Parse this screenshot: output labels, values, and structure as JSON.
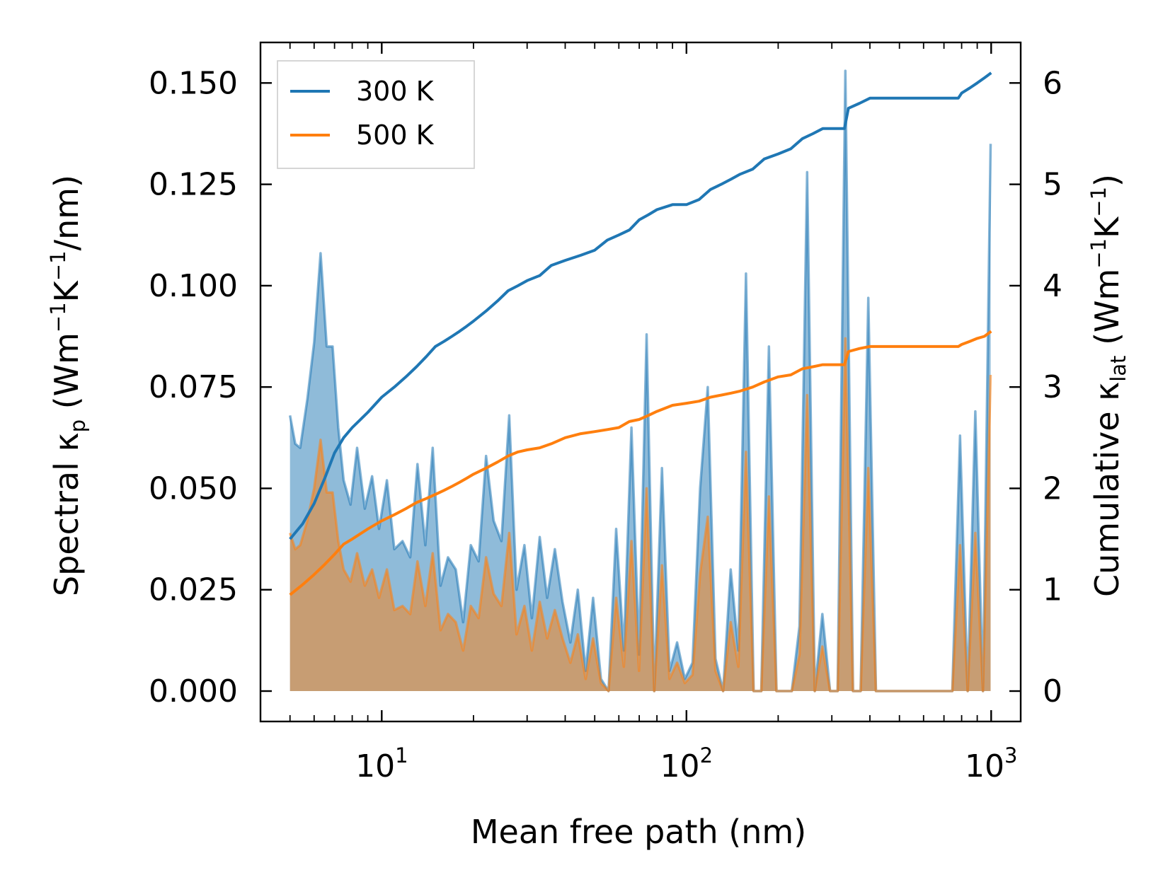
{
  "chart_data": {
    "type": "line",
    "xscale": "log",
    "xlabel": "Mean free path (nm)",
    "ylabel_left": {
      "pre": "Spectral κ",
      "sub": "p",
      "mid": " (Wm",
      "sup1": "−1",
      "mid2": "K",
      "sup2": "−1",
      "post": "/nm)"
    },
    "ylabel_right": {
      "pre": "Cumulative κ",
      "sub": "lat",
      "mid": " (Wm",
      "sup1": "−1",
      "mid2": "K",
      "sup2": "−1",
      "post": ")"
    },
    "xlim": [
      4.0,
      1250
    ],
    "ylim_left": [
      -0.0075,
      0.16
    ],
    "ylim_right": [
      -0.3,
      6.4
    ],
    "x_ticks": [
      {
        "value": 10,
        "base": "10",
        "exp": "1"
      },
      {
        "value": 100,
        "base": "10",
        "exp": "2"
      },
      {
        "value": 1000,
        "base": "10",
        "exp": "3"
      }
    ],
    "y_ticks_left": [
      {
        "value": 0.0,
        "label": "0.000"
      },
      {
        "value": 0.025,
        "label": "0.025"
      },
      {
        "value": 0.05,
        "label": "0.050"
      },
      {
        "value": 0.075,
        "label": "0.075"
      },
      {
        "value": 0.1,
        "label": "0.100"
      },
      {
        "value": 0.125,
        "label": "0.125"
      },
      {
        "value": 0.15,
        "label": "0.150"
      }
    ],
    "y_ticks_right": [
      {
        "value": 0,
        "label": "0"
      },
      {
        "value": 1,
        "label": "1"
      },
      {
        "value": 2,
        "label": "2"
      },
      {
        "value": 3,
        "label": "3"
      },
      {
        "value": 4,
        "label": "4"
      },
      {
        "value": 5,
        "label": "5"
      },
      {
        "value": 6,
        "label": "6"
      }
    ],
    "legend": {
      "position": "top-left",
      "entries": [
        {
          "name": "300 K",
          "color": "#1f77b4"
        },
        {
          "name": "500 K",
          "color": "#ff7f0e"
        }
      ]
    },
    "spectral_series": [
      {
        "name": "300 K spectral",
        "axis": "left",
        "color": "#1f77b4",
        "fill": "#1f77b4",
        "fill_alpha": 0.5,
        "x": [
          5.0,
          5.2,
          5.4,
          5.7,
          6.0,
          6.3,
          6.6,
          6.9,
          7.2,
          7.5,
          7.9,
          8.3,
          8.8,
          9.3,
          9.8,
          10.4,
          11.0,
          11.7,
          12.4,
          13.1,
          13.9,
          14.7,
          15.6,
          16.5,
          17.5,
          18.5,
          19.6,
          20.8,
          22.0,
          23.3,
          24.7,
          26.2,
          27.7,
          29.4,
          31.1,
          33.0,
          34.9,
          37.0,
          39.2,
          41.6,
          44.0,
          46.7,
          49.4,
          52.4,
          55.5,
          58.8,
          62.3,
          66.0,
          69.9,
          74.0,
          78.4,
          83.1,
          88.0,
          93.2,
          98.8,
          104.7,
          110.9,
          117.5,
          124.5,
          131.9,
          139.7,
          148.0,
          156.8,
          166.1,
          176.0,
          186.5,
          197.5,
          209.3,
          221.7,
          234.9,
          248.9,
          263.7,
          279.3,
          296.0,
          313.5,
          332.2,
          352.0,
          372.9,
          395.1,
          418.6,
          443.5,
          469.8,
          497.8,
          527.4,
          558.7,
          592.0,
          627.2,
          664.5,
          704.0,
          745.8,
          790.2,
          837.2,
          887.0,
          939.7,
          995.6
        ],
        "y": [
          0.068,
          0.061,
          0.06,
          0.072,
          0.086,
          0.108,
          0.085,
          0.085,
          0.065,
          0.052,
          0.046,
          0.06,
          0.045,
          0.053,
          0.04,
          0.052,
          0.035,
          0.037,
          0.033,
          0.056,
          0.036,
          0.06,
          0.026,
          0.033,
          0.03,
          0.017,
          0.036,
          0.032,
          0.058,
          0.042,
          0.037,
          0.068,
          0.025,
          0.036,
          0.018,
          0.038,
          0.023,
          0.035,
          0.022,
          0.012,
          0.025,
          0.005,
          0.023,
          0.003,
          0.0,
          0.04,
          0.01,
          0.065,
          0.009,
          0.088,
          0.0,
          0.055,
          0.005,
          0.012,
          0.003,
          0.007,
          0.05,
          0.075,
          0.008,
          0.0,
          0.03,
          0.01,
          0.103,
          0.0,
          0.0,
          0.085,
          0.0,
          0.0,
          0.0,
          0.016,
          0.128,
          0.0,
          0.019,
          0.0,
          0.0,
          0.153,
          0.0,
          0.0,
          0.097,
          0.0,
          0.0,
          0.0,
          0.0,
          0.0,
          0.0,
          0.0,
          0.0,
          0.0,
          0.0,
          0.0,
          0.063,
          0.0,
          0.069,
          0.0,
          0.135
        ]
      },
      {
        "name": "500 K spectral",
        "axis": "left",
        "color": "#ff7f0e",
        "fill": "#ff7f0e",
        "fill_alpha": 0.5,
        "x": [
          5.0,
          5.2,
          5.4,
          5.7,
          6.0,
          6.3,
          6.6,
          6.9,
          7.2,
          7.5,
          7.9,
          8.3,
          8.8,
          9.3,
          9.8,
          10.4,
          11.0,
          11.7,
          12.4,
          13.1,
          13.9,
          14.7,
          15.6,
          16.5,
          17.5,
          18.5,
          19.6,
          20.8,
          22.0,
          23.3,
          24.7,
          26.2,
          27.7,
          29.4,
          31.1,
          33.0,
          34.9,
          37.0,
          39.2,
          41.6,
          44.0,
          46.7,
          49.4,
          52.4,
          55.5,
          58.8,
          62.3,
          66.0,
          69.9,
          74.0,
          78.4,
          83.1,
          88.0,
          93.2,
          98.8,
          104.7,
          110.9,
          117.5,
          124.5,
          131.9,
          139.7,
          148.0,
          156.8,
          166.1,
          176.0,
          186.5,
          197.5,
          209.3,
          221.7,
          234.9,
          248.9,
          263.7,
          279.3,
          296.0,
          313.5,
          332.2,
          352.0,
          372.9,
          395.1,
          418.6,
          443.5,
          469.8,
          497.8,
          527.4,
          558.7,
          592.0,
          627.2,
          664.5,
          704.0,
          745.8,
          790.2,
          837.2,
          887.0,
          939.7,
          995.6
        ],
        "y": [
          0.039,
          0.035,
          0.036,
          0.042,
          0.05,
          0.062,
          0.049,
          0.049,
          0.037,
          0.03,
          0.027,
          0.034,
          0.026,
          0.03,
          0.023,
          0.03,
          0.02,
          0.021,
          0.019,
          0.032,
          0.021,
          0.034,
          0.015,
          0.019,
          0.017,
          0.01,
          0.021,
          0.018,
          0.033,
          0.024,
          0.021,
          0.039,
          0.014,
          0.021,
          0.01,
          0.022,
          0.013,
          0.02,
          0.013,
          0.007,
          0.014,
          0.003,
          0.013,
          0.002,
          0.0,
          0.023,
          0.006,
          0.037,
          0.005,
          0.05,
          0.0,
          0.031,
          0.003,
          0.007,
          0.002,
          0.004,
          0.029,
          0.043,
          0.005,
          0.0,
          0.017,
          0.006,
          0.059,
          0.0,
          0.0,
          0.048,
          0.0,
          0.0,
          0.0,
          0.009,
          0.073,
          0.0,
          0.011,
          0.0,
          0.0,
          0.087,
          0.0,
          0.0,
          0.055,
          0.0,
          0.0,
          0.0,
          0.0,
          0.0,
          0.0,
          0.0,
          0.0,
          0.0,
          0.0,
          0.0,
          0.036,
          0.0,
          0.039,
          0.0,
          0.078
        ]
      }
    ],
    "cumulative_series": [
      {
        "name": "300 K",
        "axis": "right",
        "color": "#1f77b4",
        "x": [
          5.0,
          5.5,
          6.0,
          6.5,
          7.0,
          7.5,
          8.0,
          9.0,
          10.0,
          11.0,
          12.0,
          13.0,
          14.0,
          15.0,
          16.0,
          17.0,
          18.0,
          19.0,
          20.0,
          22.0,
          24.0,
          26.0,
          28.0,
          30.0,
          33.0,
          36.0,
          40.0,
          45.0,
          50.0,
          55.0,
          60.0,
          65.0,
          70.0,
          75.0,
          80.0,
          90.0,
          100.0,
          110.0,
          120.0,
          130.0,
          140.0,
          150.0,
          165.0,
          180.0,
          200.0,
          220.0,
          240.0,
          260.0,
          280.0,
          300.0,
          330.0,
          340.0,
          370.0,
          400.0,
          700.0,
          780.0,
          800.0,
          850.0,
          900.0,
          950.0,
          1000.0
        ],
        "y": [
          1.5,
          1.65,
          1.85,
          2.1,
          2.35,
          2.5,
          2.6,
          2.75,
          2.9,
          3.0,
          3.1,
          3.2,
          3.3,
          3.4,
          3.45,
          3.5,
          3.55,
          3.6,
          3.65,
          3.75,
          3.85,
          3.95,
          4.0,
          4.05,
          4.1,
          4.2,
          4.25,
          4.3,
          4.35,
          4.45,
          4.5,
          4.55,
          4.65,
          4.7,
          4.75,
          4.8,
          4.8,
          4.85,
          4.95,
          5.0,
          5.05,
          5.1,
          5.15,
          5.25,
          5.3,
          5.35,
          5.45,
          5.5,
          5.55,
          5.55,
          5.55,
          5.75,
          5.8,
          5.85,
          5.85,
          5.85,
          5.9,
          5.95,
          6.0,
          6.05,
          6.1
        ]
      },
      {
        "name": "500 K",
        "axis": "right",
        "color": "#ff7f0e",
        "x": [
          5.0,
          5.5,
          6.0,
          6.5,
          7.0,
          7.5,
          8.0,
          9.0,
          10.0,
          11.0,
          12.0,
          13.0,
          14.0,
          15.0,
          16.0,
          17.0,
          18.0,
          19.0,
          20.0,
          22.0,
          24.0,
          26.0,
          28.0,
          30.0,
          33.0,
          36.0,
          40.0,
          45.0,
          50.0,
          55.0,
          60.0,
          65.0,
          70.0,
          75.0,
          80.0,
          90.0,
          100.0,
          110.0,
          120.0,
          130.0,
          140.0,
          150.0,
          165.0,
          180.0,
          200.0,
          220.0,
          240.0,
          260.0,
          280.0,
          300.0,
          330.0,
          340.0,
          370.0,
          400.0,
          700.0,
          780.0,
          800.0,
          850.0,
          900.0,
          950.0,
          1000.0
        ],
        "y": [
          0.95,
          1.05,
          1.15,
          1.25,
          1.35,
          1.45,
          1.5,
          1.6,
          1.68,
          1.74,
          1.8,
          1.86,
          1.9,
          1.94,
          1.98,
          2.02,
          2.06,
          2.1,
          2.14,
          2.2,
          2.26,
          2.32,
          2.36,
          2.38,
          2.4,
          2.44,
          2.5,
          2.54,
          2.56,
          2.58,
          2.6,
          2.66,
          2.68,
          2.72,
          2.76,
          2.82,
          2.84,
          2.86,
          2.9,
          2.92,
          2.94,
          2.96,
          3.0,
          3.05,
          3.1,
          3.12,
          3.18,
          3.2,
          3.22,
          3.22,
          3.22,
          3.35,
          3.38,
          3.4,
          3.4,
          3.4,
          3.42,
          3.45,
          3.48,
          3.5,
          3.55
        ]
      }
    ]
  }
}
